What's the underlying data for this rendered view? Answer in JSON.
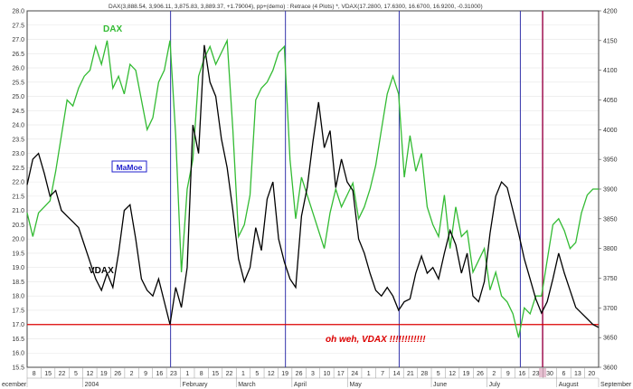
{
  "header": "DAX(3,888.54, 3,906.11, 3,875.83, 3,889.37, +1.79004), pp+(demo) : Retrace (4 Plots) *, VDAX(17.2800, 17.6300, 16.6700, 16.9200, -0.31000)",
  "watermark": "MaMoe",
  "annotation": "oh weh, VDAX !!!!!!!!!!!!",
  "colors": {
    "dax": "#33bb33",
    "vdax": "#000000",
    "support": "#dd0000",
    "markers": "#3333aa",
    "last_marker": "#990044",
    "annotation": "#dd0000",
    "watermark": "#2222cc"
  },
  "chart_data": {
    "type": "line",
    "x_ticks": [
      "8",
      "15",
      "22",
      "5",
      "12",
      "19",
      "26",
      "2",
      "9",
      "16",
      "23",
      "1",
      "8",
      "15",
      "22",
      "1",
      "5",
      "12",
      "19",
      "26",
      "3",
      "10",
      "17",
      "24",
      "1",
      "7",
      "14",
      "21",
      "28",
      "5",
      "12",
      "19",
      "26",
      "2",
      "9",
      "16",
      "23",
      "30",
      "6",
      "13",
      "20"
    ],
    "months": [
      "ecember",
      "2004",
      "February",
      "March",
      "April",
      "May",
      "June",
      "July",
      "August",
      "September"
    ],
    "left_axis": {
      "min": 15.5,
      "max": 28.0,
      "step": 0.5
    },
    "right_axis": {
      "min": 3600,
      "max": 4200,
      "step": 50
    },
    "support_level": 17.0,
    "marker_positions": [
      0.251,
      0.452,
      0.651,
      0.863,
      0.902
    ],
    "series": [
      {
        "name": "DAX",
        "axis": "right",
        "x": [
          0,
          0.01,
          0.02,
          0.03,
          0.04,
          0.05,
          0.06,
          0.07,
          0.08,
          0.09,
          0.1,
          0.11,
          0.12,
          0.13,
          0.14,
          0.15,
          0.16,
          0.17,
          0.18,
          0.19,
          0.2,
          0.21,
          0.22,
          0.23,
          0.24,
          0.25,
          0.26,
          0.27,
          0.28,
          0.29,
          0.3,
          0.31,
          0.32,
          0.33,
          0.34,
          0.35,
          0.36,
          0.37,
          0.38,
          0.39,
          0.4,
          0.41,
          0.42,
          0.43,
          0.44,
          0.45,
          0.46,
          0.47,
          0.48,
          0.49,
          0.5,
          0.51,
          0.52,
          0.53,
          0.54,
          0.55,
          0.56,
          0.57,
          0.58,
          0.59,
          0.6,
          0.61,
          0.62,
          0.63,
          0.64,
          0.65,
          0.66,
          0.67,
          0.68,
          0.69,
          0.7,
          0.71,
          0.72,
          0.73,
          0.74,
          0.75,
          0.76,
          0.77,
          0.78,
          0.79,
          0.8,
          0.81,
          0.82,
          0.83,
          0.84,
          0.85,
          0.86,
          0.87,
          0.88,
          0.89,
          0.9,
          0.91,
          0.92,
          0.93,
          0.94,
          0.95,
          0.96,
          0.97,
          0.98,
          0.99,
          1.0
        ],
        "values": [
          3860,
          3820,
          3860,
          3870,
          3880,
          3930,
          3990,
          4050,
          4040,
          4070,
          4090,
          4100,
          4140,
          4110,
          4150,
          4070,
          4090,
          4060,
          4110,
          4100,
          4050,
          4000,
          4020,
          4080,
          4100,
          4150,
          3990,
          3760,
          3900,
          3950,
          4090,
          4120,
          4140,
          4110,
          4130,
          4150,
          4000,
          3820,
          3840,
          3890,
          4050,
          4070,
          4080,
          4100,
          4130,
          4140,
          3950,
          3850,
          3920,
          3890,
          3860,
          3830,
          3800,
          3860,
          3900,
          3870,
          3890,
          3910,
          3850,
          3870,
          3900,
          3940,
          4000,
          4060,
          4090,
          4060,
          3920,
          3990,
          3930,
          3960,
          3870,
          3840,
          3820,
          3890,
          3800,
          3870,
          3820,
          3830,
          3760,
          3780,
          3800,
          3730,
          3760,
          3720,
          3710,
          3690,
          3650,
          3700,
          3690,
          3720,
          3720,
          3780,
          3840,
          3850,
          3830,
          3800,
          3810,
          3860,
          3890,
          3900,
          3900
        ]
      },
      {
        "name": "VDAX",
        "axis": "left",
        "x": [
          0,
          0.01,
          0.02,
          0.03,
          0.04,
          0.05,
          0.06,
          0.07,
          0.08,
          0.09,
          0.1,
          0.11,
          0.12,
          0.13,
          0.14,
          0.15,
          0.16,
          0.17,
          0.18,
          0.19,
          0.2,
          0.21,
          0.22,
          0.23,
          0.24,
          0.25,
          0.26,
          0.27,
          0.28,
          0.29,
          0.3,
          0.31,
          0.32,
          0.33,
          0.34,
          0.35,
          0.36,
          0.37,
          0.38,
          0.39,
          0.4,
          0.41,
          0.42,
          0.43,
          0.44,
          0.45,
          0.46,
          0.47,
          0.48,
          0.49,
          0.5,
          0.51,
          0.52,
          0.53,
          0.54,
          0.55,
          0.56,
          0.57,
          0.58,
          0.59,
          0.6,
          0.61,
          0.62,
          0.63,
          0.64,
          0.65,
          0.66,
          0.67,
          0.68,
          0.69,
          0.7,
          0.71,
          0.72,
          0.73,
          0.74,
          0.75,
          0.76,
          0.77,
          0.78,
          0.79,
          0.8,
          0.81,
          0.82,
          0.83,
          0.84,
          0.85,
          0.86,
          0.87,
          0.88,
          0.89,
          0.9,
          0.91,
          0.92,
          0.93,
          0.94,
          0.95,
          0.96,
          0.97,
          0.98,
          0.99,
          1.0
        ],
        "values": [
          21.9,
          22.8,
          23.0,
          22.3,
          21.5,
          21.7,
          21.0,
          20.8,
          20.6,
          20.4,
          19.8,
          19.2,
          18.6,
          18.2,
          18.8,
          18.3,
          19.5,
          21.0,
          21.2,
          20.0,
          18.6,
          18.2,
          18.0,
          18.6,
          17.8,
          17.0,
          18.3,
          17.6,
          19.0,
          24.0,
          23.0,
          26.8,
          25.5,
          25.0,
          23.5,
          22.5,
          21.0,
          19.3,
          18.5,
          19.0,
          20.4,
          19.6,
          21.4,
          22.0,
          20.0,
          19.2,
          18.6,
          18.3,
          20.8,
          21.8,
          23.4,
          24.8,
          23.2,
          23.8,
          21.8,
          22.8,
          22.0,
          21.7,
          20.0,
          19.5,
          18.8,
          18.2,
          18.0,
          18.3,
          18.0,
          17.5,
          17.8,
          17.9,
          18.8,
          19.4,
          18.8,
          19.0,
          18.6,
          19.5,
          20.3,
          19.8,
          18.8,
          19.5,
          18.0,
          17.8,
          18.5,
          20.2,
          21.5,
          22.0,
          21.8,
          21.0,
          20.2,
          19.3,
          18.6,
          17.9,
          17.4,
          17.8,
          18.6,
          19.5,
          18.8,
          18.2,
          17.6,
          17.4,
          17.2,
          17.0,
          16.9
        ]
      }
    ]
  }
}
